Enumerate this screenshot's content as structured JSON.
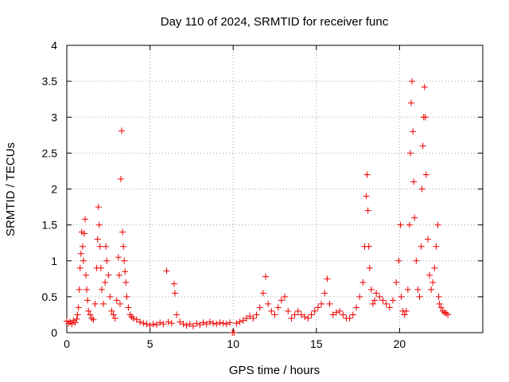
{
  "chart_data": {
    "type": "scatter",
    "title": "Day 110 of 2024, SRMTID for receiver func",
    "xlabel": "GPS time / hours",
    "ylabel": "SRMTID / TECUs",
    "xlim": [
      0,
      25
    ],
    "ylim": [
      0,
      4
    ],
    "xticks": [
      0,
      5,
      10,
      15,
      20
    ],
    "xtick_labels": [
      "0",
      "5",
      "10",
      "15",
      "20"
    ],
    "yticks": [
      0,
      0.5,
      1,
      1.5,
      2,
      2.5,
      3,
      3.5,
      4
    ],
    "ytick_labels": [
      "0",
      "0.5",
      "1",
      "1.5",
      "2",
      "2.5",
      "3",
      "3.5",
      "4"
    ],
    "grid": true,
    "marker": "+",
    "marker_color": "#ee0000",
    "series": [
      {
        "name": "SRMTID",
        "points": [
          [
            0.0,
            0.16
          ],
          [
            0.1,
            0.13
          ],
          [
            0.2,
            0.15
          ],
          [
            0.3,
            0.12
          ],
          [
            0.4,
            0.17
          ],
          [
            0.5,
            0.14
          ],
          [
            0.6,
            0.19
          ],
          [
            0.65,
            0.25
          ],
          [
            0.7,
            0.35
          ],
          [
            0.75,
            0.6
          ],
          [
            0.8,
            0.9
          ],
          [
            0.85,
            1.1
          ],
          [
            0.9,
            1.4
          ],
          [
            0.95,
            1.2
          ],
          [
            1.0,
            1.0
          ],
          [
            1.05,
            1.38
          ],
          [
            1.1,
            1.58
          ],
          [
            1.15,
            0.8
          ],
          [
            1.2,
            0.6
          ],
          [
            1.25,
            0.45
          ],
          [
            1.3,
            0.3
          ],
          [
            1.4,
            0.25
          ],
          [
            1.5,
            0.2
          ],
          [
            1.6,
            0.18
          ],
          [
            1.7,
            0.4
          ],
          [
            1.8,
            0.9
          ],
          [
            1.85,
            1.3
          ],
          [
            1.9,
            1.75
          ],
          [
            1.95,
            1.5
          ],
          [
            2.0,
            1.2
          ],
          [
            2.05,
            0.9
          ],
          [
            2.1,
            0.6
          ],
          [
            2.2,
            0.4
          ],
          [
            2.3,
            0.7
          ],
          [
            2.35,
            1.2
          ],
          [
            2.4,
            1.0
          ],
          [
            2.5,
            0.8
          ],
          [
            2.6,
            0.5
          ],
          [
            2.7,
            0.3
          ],
          [
            2.8,
            0.25
          ],
          [
            2.9,
            0.2
          ],
          [
            3.0,
            0.45
          ],
          [
            3.1,
            1.05
          ],
          [
            3.15,
            0.8
          ],
          [
            3.2,
            0.4
          ],
          [
            3.25,
            2.14
          ],
          [
            3.3,
            2.81
          ],
          [
            3.35,
            1.4
          ],
          [
            3.4,
            1.2
          ],
          [
            3.45,
            1.0
          ],
          [
            3.5,
            0.85
          ],
          [
            3.55,
            0.7
          ],
          [
            3.6,
            0.5
          ],
          [
            3.7,
            0.35
          ],
          [
            3.8,
            0.25
          ],
          [
            3.9,
            0.22
          ],
          [
            4.0,
            0.2
          ],
          [
            4.2,
            0.18
          ],
          [
            4.4,
            0.15
          ],
          [
            4.6,
            0.13
          ],
          [
            4.8,
            0.12
          ],
          [
            5.0,
            0.1
          ],
          [
            5.2,
            0.12
          ],
          [
            5.4,
            0.11
          ],
          [
            5.6,
            0.14
          ],
          [
            5.8,
            0.12
          ],
          [
            6.0,
            0.86
          ],
          [
            6.1,
            0.15
          ],
          [
            6.3,
            0.13
          ],
          [
            6.45,
            0.68
          ],
          [
            6.5,
            0.55
          ],
          [
            6.6,
            0.25
          ],
          [
            6.8,
            0.15
          ],
          [
            7.0,
            0.12
          ],
          [
            7.2,
            0.1
          ],
          [
            7.4,
            0.12
          ],
          [
            7.6,
            0.09
          ],
          [
            7.8,
            0.13
          ],
          [
            8.0,
            0.11
          ],
          [
            8.2,
            0.14
          ],
          [
            8.4,
            0.12
          ],
          [
            8.6,
            0.15
          ],
          [
            8.8,
            0.13
          ],
          [
            9.0,
            0.12
          ],
          [
            9.2,
            0.14
          ],
          [
            9.4,
            0.13
          ],
          [
            9.6,
            0.12
          ],
          [
            9.8,
            0.14
          ],
          [
            9.95,
            0.0
          ],
          [
            10.05,
            0.0
          ],
          [
            10.2,
            0.13
          ],
          [
            10.4,
            0.15
          ],
          [
            10.6,
            0.17
          ],
          [
            10.8,
            0.2
          ],
          [
            11.0,
            0.23
          ],
          [
            11.2,
            0.2
          ],
          [
            11.4,
            0.25
          ],
          [
            11.6,
            0.35
          ],
          [
            11.8,
            0.55
          ],
          [
            11.95,
            0.78
          ],
          [
            12.1,
            0.4
          ],
          [
            12.3,
            0.3
          ],
          [
            12.5,
            0.25
          ],
          [
            12.7,
            0.35
          ],
          [
            12.9,
            0.45
          ],
          [
            13.1,
            0.5
          ],
          [
            13.3,
            0.3
          ],
          [
            13.5,
            0.2
          ],
          [
            13.7,
            0.25
          ],
          [
            13.9,
            0.3
          ],
          [
            14.1,
            0.25
          ],
          [
            14.3,
            0.22
          ],
          [
            14.5,
            0.2
          ],
          [
            14.7,
            0.25
          ],
          [
            14.9,
            0.3
          ],
          [
            15.1,
            0.35
          ],
          [
            15.3,
            0.4
          ],
          [
            15.5,
            0.55
          ],
          [
            15.65,
            0.75
          ],
          [
            15.8,
            0.4
          ],
          [
            16.0,
            0.25
          ],
          [
            16.2,
            0.28
          ],
          [
            16.4,
            0.3
          ],
          [
            16.6,
            0.25
          ],
          [
            16.8,
            0.2
          ],
          [
            17.0,
            0.2
          ],
          [
            17.2,
            0.25
          ],
          [
            17.4,
            0.35
          ],
          [
            17.6,
            0.5
          ],
          [
            17.8,
            0.7
          ],
          [
            17.9,
            1.2
          ],
          [
            18.0,
            1.9
          ],
          [
            18.05,
            2.2
          ],
          [
            18.1,
            1.7
          ],
          [
            18.15,
            1.2
          ],
          [
            18.2,
            0.9
          ],
          [
            18.3,
            0.6
          ],
          [
            18.4,
            0.4
          ],
          [
            18.5,
            0.45
          ],
          [
            18.6,
            0.55
          ],
          [
            18.8,
            0.5
          ],
          [
            19.0,
            0.45
          ],
          [
            19.2,
            0.4
          ],
          [
            19.4,
            0.35
          ],
          [
            19.6,
            0.45
          ],
          [
            19.8,
            0.7
          ],
          [
            19.95,
            1.0
          ],
          [
            20.05,
            1.5
          ],
          [
            20.1,
            0.5
          ],
          [
            20.2,
            0.3
          ],
          [
            20.3,
            0.25
          ],
          [
            20.4,
            0.3
          ],
          [
            20.5,
            0.6
          ],
          [
            20.6,
            1.5
          ],
          [
            20.65,
            2.5
          ],
          [
            20.7,
            3.2
          ],
          [
            20.75,
            3.5
          ],
          [
            20.8,
            2.8
          ],
          [
            20.85,
            2.1
          ],
          [
            20.9,
            1.6
          ],
          [
            21.0,
            1.0
          ],
          [
            21.1,
            0.6
          ],
          [
            21.2,
            0.5
          ],
          [
            21.3,
            1.2
          ],
          [
            21.35,
            2.0
          ],
          [
            21.4,
            2.6
          ],
          [
            21.45,
            3.0
          ],
          [
            21.5,
            3.42
          ],
          [
            21.55,
            3.0
          ],
          [
            21.6,
            2.2
          ],
          [
            21.7,
            1.3
          ],
          [
            21.8,
            0.8
          ],
          [
            21.9,
            0.6
          ],
          [
            22.0,
            0.7
          ],
          [
            22.1,
            0.9
          ],
          [
            22.2,
            1.2
          ],
          [
            22.3,
            1.5
          ],
          [
            22.35,
            0.5
          ],
          [
            22.4,
            0.4
          ],
          [
            22.5,
            0.35
          ],
          [
            22.6,
            0.3
          ],
          [
            22.7,
            0.28
          ],
          [
            22.8,
            0.27
          ],
          [
            22.9,
            0.25
          ]
        ]
      }
    ]
  }
}
